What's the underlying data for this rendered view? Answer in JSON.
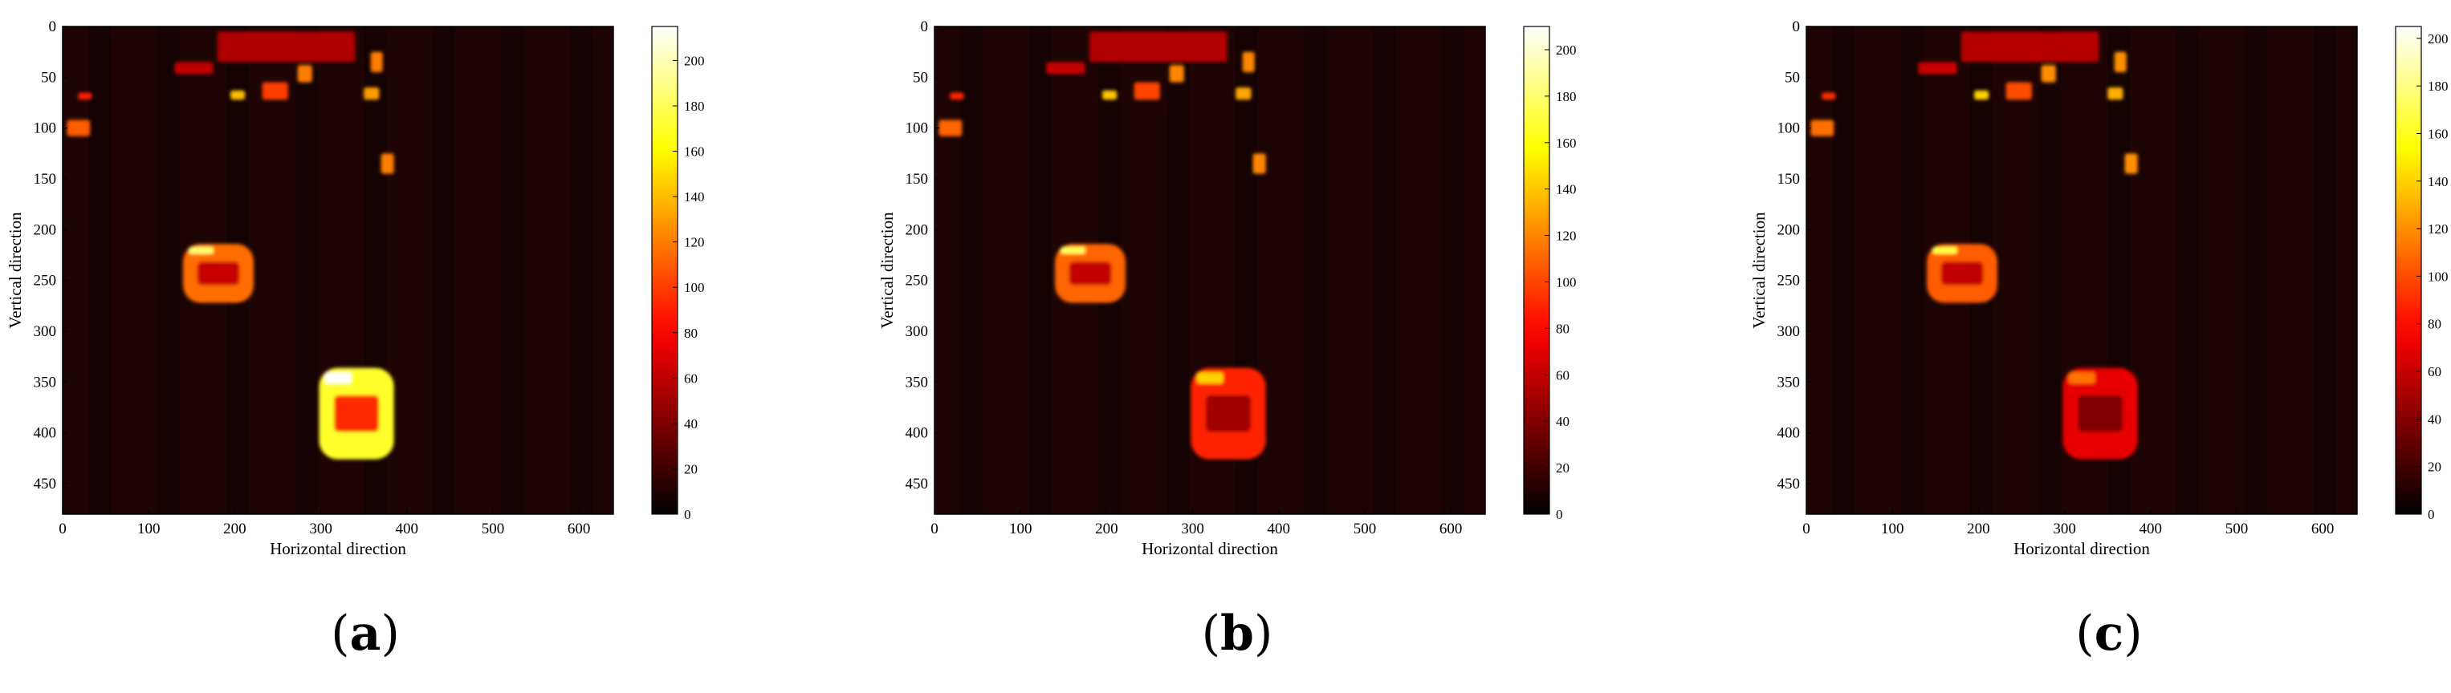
{
  "chart_data": [
    {
      "type": "heatmap",
      "panel_label": "(a)",
      "xlabel": "Horizontal direction",
      "ylabel": "Vertical direction",
      "xlim": [
        0,
        640
      ],
      "ylim": [
        480,
        0
      ],
      "xticks": [
        0,
        100,
        200,
        300,
        400,
        500,
        600
      ],
      "yticks": [
        0,
        50,
        100,
        150,
        200,
        250,
        300,
        350,
        400,
        450
      ],
      "colorbar": {
        "colormap": "hot",
        "range": [
          0,
          215
        ],
        "ticks": [
          0,
          20,
          40,
          60,
          80,
          100,
          120,
          140,
          160,
          180,
          200
        ]
      },
      "objects": [
        {
          "kind": "car",
          "x": [
            140,
            222
          ],
          "y": [
            214,
            272
          ],
          "value": 115
        },
        {
          "kind": "car",
          "x": [
            298,
            385
          ],
          "y": [
            336,
            426
          ],
          "value": 170
        },
        {
          "kind": "spot",
          "x": [
            5,
            32
          ],
          "y": [
            92,
            108
          ],
          "value": 110
        },
        {
          "kind": "spot",
          "x": [
            370,
            385
          ],
          "y": [
            125,
            145
          ],
          "value": 120
        },
        {
          "kind": "spot",
          "x": [
            18,
            34
          ],
          "y": [
            65,
            72
          ],
          "value": 90
        },
        {
          "kind": "spot",
          "x": [
            195,
            212
          ],
          "y": [
            63,
            72
          ],
          "value": 140
        },
        {
          "kind": "spot",
          "x": [
            232,
            262
          ],
          "y": [
            55,
            72
          ],
          "value": 100
        },
        {
          "kind": "spot",
          "x": [
            273,
            290
          ],
          "y": [
            38,
            55
          ],
          "value": 120
        },
        {
          "kind": "spot",
          "x": [
            350,
            368
          ],
          "y": [
            60,
            72
          ],
          "value": 130
        },
        {
          "kind": "spot",
          "x": [
            358,
            372
          ],
          "y": [
            25,
            45
          ],
          "value": 120
        },
        {
          "kind": "spot",
          "x": [
            130,
            175
          ],
          "y": [
            35,
            47
          ],
          "value": 60
        },
        {
          "kind": "spot",
          "x": [
            180,
            340
          ],
          "y": [
            5,
            35
          ],
          "value": 55
        }
      ]
    },
    {
      "type": "heatmap",
      "panel_label": "(b)",
      "xlabel": "Horizontal direction",
      "ylabel": "Vertical direction",
      "xlim": [
        0,
        640
      ],
      "ylim": [
        480,
        0
      ],
      "xticks": [
        0,
        100,
        200,
        300,
        400,
        500,
        600
      ],
      "yticks": [
        0,
        50,
        100,
        150,
        200,
        250,
        300,
        350,
        400,
        450
      ],
      "colorbar": {
        "colormap": "hot",
        "range": [
          0,
          210
        ],
        "ticks": [
          0,
          20,
          40,
          60,
          80,
          100,
          120,
          140,
          160,
          180,
          200
        ]
      },
      "objects": [
        {
          "kind": "car",
          "x": [
            140,
            222
          ],
          "y": [
            214,
            272
          ],
          "value": 110
        },
        {
          "kind": "car",
          "x": [
            298,
            385
          ],
          "y": [
            336,
            426
          ],
          "value": 90
        },
        {
          "kind": "spot",
          "x": [
            5,
            32
          ],
          "y": [
            92,
            108
          ],
          "value": 110
        },
        {
          "kind": "spot",
          "x": [
            370,
            385
          ],
          "y": [
            125,
            145
          ],
          "value": 120
        },
        {
          "kind": "spot",
          "x": [
            18,
            34
          ],
          "y": [
            65,
            72
          ],
          "value": 90
        },
        {
          "kind": "spot",
          "x": [
            195,
            212
          ],
          "y": [
            63,
            72
          ],
          "value": 140
        },
        {
          "kind": "spot",
          "x": [
            232,
            262
          ],
          "y": [
            55,
            72
          ],
          "value": 100
        },
        {
          "kind": "spot",
          "x": [
            273,
            290
          ],
          "y": [
            38,
            55
          ],
          "value": 120
        },
        {
          "kind": "spot",
          "x": [
            350,
            368
          ],
          "y": [
            60,
            72
          ],
          "value": 130
        },
        {
          "kind": "spot",
          "x": [
            358,
            372
          ],
          "y": [
            25,
            45
          ],
          "value": 120
        },
        {
          "kind": "spot",
          "x": [
            130,
            175
          ],
          "y": [
            35,
            47
          ],
          "value": 60
        },
        {
          "kind": "spot",
          "x": [
            180,
            340
          ],
          "y": [
            5,
            35
          ],
          "value": 55
        }
      ]
    },
    {
      "type": "heatmap",
      "panel_label": "(c)",
      "xlabel": "Horizontal direction",
      "ylabel": "Vertical direction",
      "xlim": [
        0,
        640
      ],
      "ylim": [
        480,
        0
      ],
      "xticks": [
        0,
        100,
        200,
        300,
        400,
        500,
        600
      ],
      "yticks": [
        0,
        50,
        100,
        150,
        200,
        250,
        300,
        350,
        400,
        450
      ],
      "colorbar": {
        "colormap": "hot",
        "range": [
          0,
          205
        ],
        "ticks": [
          0,
          20,
          40,
          60,
          80,
          100,
          120,
          140,
          160,
          180,
          200
        ]
      },
      "objects": [
        {
          "kind": "car",
          "x": [
            140,
            222
          ],
          "y": [
            214,
            272
          ],
          "value": 105
        },
        {
          "kind": "car",
          "x": [
            298,
            385
          ],
          "y": [
            336,
            426
          ],
          "value": 70
        },
        {
          "kind": "spot",
          "x": [
            5,
            32
          ],
          "y": [
            92,
            108
          ],
          "value": 110
        },
        {
          "kind": "spot",
          "x": [
            370,
            385
          ],
          "y": [
            125,
            145
          ],
          "value": 120
        },
        {
          "kind": "spot",
          "x": [
            18,
            34
          ],
          "y": [
            65,
            72
          ],
          "value": 90
        },
        {
          "kind": "spot",
          "x": [
            195,
            212
          ],
          "y": [
            63,
            72
          ],
          "value": 140
        },
        {
          "kind": "spot",
          "x": [
            232,
            262
          ],
          "y": [
            55,
            72
          ],
          "value": 100
        },
        {
          "kind": "spot",
          "x": [
            273,
            290
          ],
          "y": [
            38,
            55
          ],
          "value": 120
        },
        {
          "kind": "spot",
          "x": [
            350,
            368
          ],
          "y": [
            60,
            72
          ],
          "value": 130
        },
        {
          "kind": "spot",
          "x": [
            358,
            372
          ],
          "y": [
            25,
            45
          ],
          "value": 120
        },
        {
          "kind": "spot",
          "x": [
            130,
            175
          ],
          "y": [
            35,
            47
          ],
          "value": 60
        },
        {
          "kind": "spot",
          "x": [
            180,
            340
          ],
          "y": [
            5,
            35
          ],
          "value": 55
        }
      ]
    }
  ]
}
